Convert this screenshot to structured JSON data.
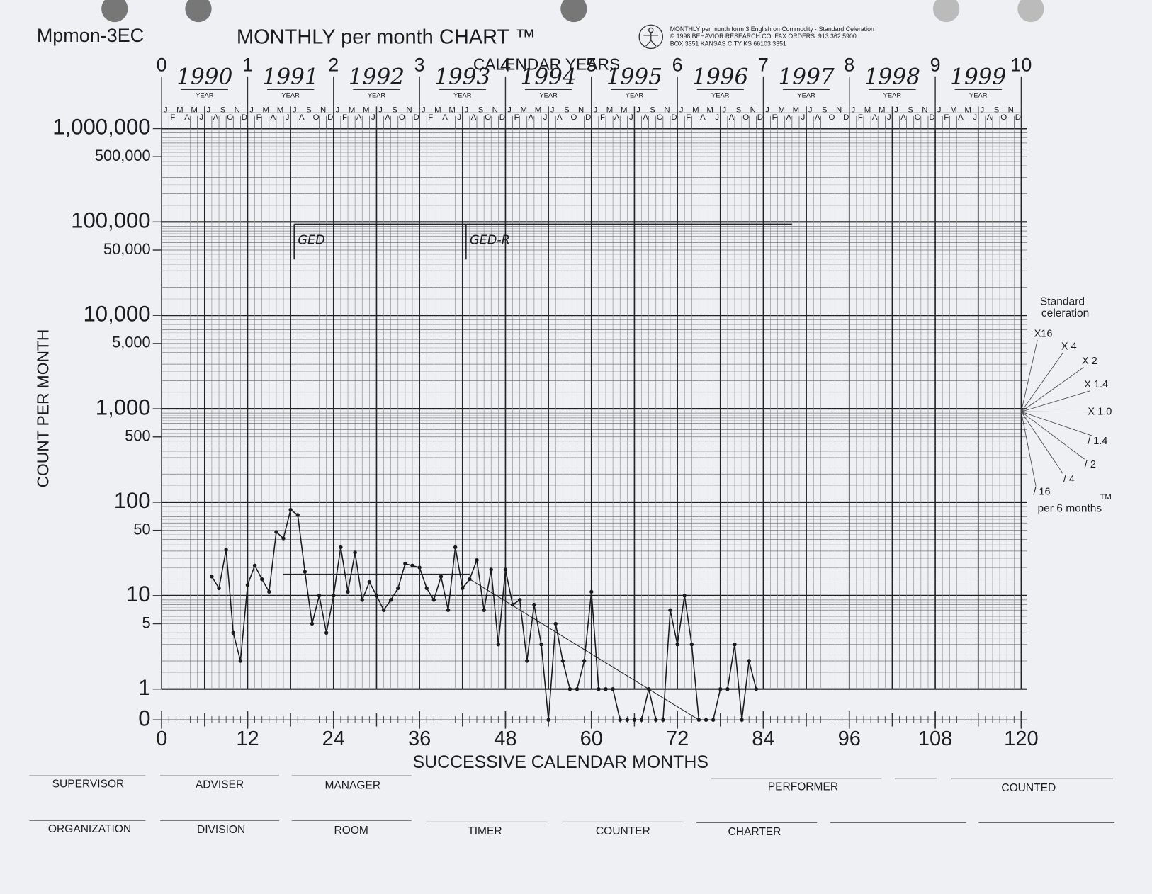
{
  "header": {
    "form_code": "Mpmon-3EC",
    "title": "MONTHLY per month CHART ™",
    "fine_print": [
      "MONTHLY per month form 3 English on Commodity · Standard Celeration",
      "© 1998 BEHAVIOR RESEARCH CO. FAX ORDERS: 913 362 5900",
      "BOX 3351 KANSAS CITY KS 66103 3351"
    ]
  },
  "chart_data": {
    "type": "line",
    "yscale": "log",
    "grid": true,
    "color": "#1a1a1a",
    "top_title": "CALENDAR YEARS",
    "ylabel": "COUNT PER MONTH",
    "xlabel": "SUCCESSIVE CALENDAR MONTHS",
    "xlim": [
      0,
      120
    ],
    "xticks": [
      0,
      12,
      24,
      36,
      48,
      60,
      72,
      84,
      96,
      108,
      120
    ],
    "top_ticks": [
      0,
      {
        "value": 12,
        "label": "1"
      },
      {
        "value": 24,
        "label": "2"
      },
      {
        "value": 36,
        "label": "3"
      },
      {
        "value": 48,
        "label": "4"
      },
      {
        "value": 60,
        "label": "5"
      },
      {
        "value": 72,
        "label": "6"
      },
      {
        "value": 84,
        "label": "7"
      },
      {
        "value": 96,
        "label": "8"
      },
      {
        "value": 108,
        "label": "9"
      },
      {
        "value": 120,
        "label": "10"
      }
    ],
    "years": [
      "1990",
      "1991",
      "1992",
      "1993",
      "1994",
      "1995",
      "1996",
      "1997",
      "1998",
      "1999"
    ],
    "year_word": "YEAR",
    "month_letters": [
      "J",
      "F",
      "M",
      "A",
      "M",
      "J",
      "J",
      "A",
      "S",
      "O",
      "N",
      "D"
    ],
    "ylim": [
      0,
      1000000
    ],
    "yticks": [
      0,
      1,
      5,
      10,
      50,
      100,
      500,
      {
        "value": 1000,
        "label": "1,000"
      },
      {
        "value": 5000,
        "label": "5,000"
      },
      {
        "value": 10000,
        "label": "10,000"
      },
      {
        "value": 50000,
        "label": "50,000"
      },
      {
        "value": 100000,
        "label": "100,000"
      },
      {
        "value": 500000,
        "label": "500,000"
      },
      {
        "value": 1000000,
        "label": "1,000,000"
      }
    ],
    "x": [
      7,
      8,
      9,
      10,
      11,
      12,
      13,
      14,
      15,
      16,
      17,
      18,
      19,
      20,
      21,
      22,
      23,
      24,
      25,
      26,
      27,
      28,
      29,
      30,
      31,
      32,
      33,
      34,
      35,
      36,
      37,
      38,
      39,
      40,
      41,
      42,
      43,
      44,
      45,
      46,
      47,
      48,
      49,
      50,
      51,
      52,
      53,
      54,
      55,
      56,
      57,
      58,
      59,
      60,
      61,
      62,
      63,
      64,
      65,
      66,
      67,
      68,
      69,
      70,
      71,
      72,
      73,
      74,
      75,
      76,
      77,
      78,
      79,
      80,
      81,
      82,
      83
    ],
    "values": [
      16,
      12,
      31,
      4,
      2,
      13,
      21,
      15,
      11,
      48,
      41,
      83,
      73,
      18,
      5,
      10,
      4,
      10,
      33,
      11,
      29,
      9,
      14,
      10,
      7,
      9,
      12,
      22,
      21,
      20,
      12,
      9,
      16,
      7,
      33,
      12,
      15,
      24,
      7,
      19,
      3,
      19,
      8,
      9,
      2,
      8,
      3,
      0,
      5,
      2,
      1,
      1,
      2,
      11,
      1,
      1,
      1,
      0,
      0,
      0,
      0,
      1,
      0,
      0,
      7,
      3,
      10,
      3,
      0,
      0,
      0,
      1,
      1,
      3,
      0,
      2,
      1
    ],
    "phase_changes": [
      {
        "x": 18.5,
        "label": "GED"
      },
      {
        "x": 42.5,
        "label": "GED-R"
      }
    ],
    "phase_line_end": 88,
    "celeration_lines": [
      {
        "x": [
          17,
          43
        ],
        "values": [
          17,
          17
        ]
      },
      {
        "x": [
          43,
          75
        ],
        "values": [
          15,
          0
        ]
      }
    ],
    "celeration_fan": {
      "title": [
        "Standard",
        "celeration"
      ],
      "labels": [
        "X16",
        "X 4",
        "X 2",
        "X 1.4",
        "X 1.0",
        "/ 1.4",
        "/ 2",
        "/ 4",
        "/ 16"
      ],
      "tm": "TM",
      "unit": "per 6 months"
    }
  },
  "footer": {
    "row1": [
      "SUPERVISOR",
      "ADVISER",
      "MANAGER",
      "PERFORMER",
      "COUNTED"
    ],
    "row2": [
      "ORGANIZATION",
      "DIVISION",
      "ROOM",
      "TIMER",
      "COUNTER",
      "CHARTER"
    ]
  }
}
